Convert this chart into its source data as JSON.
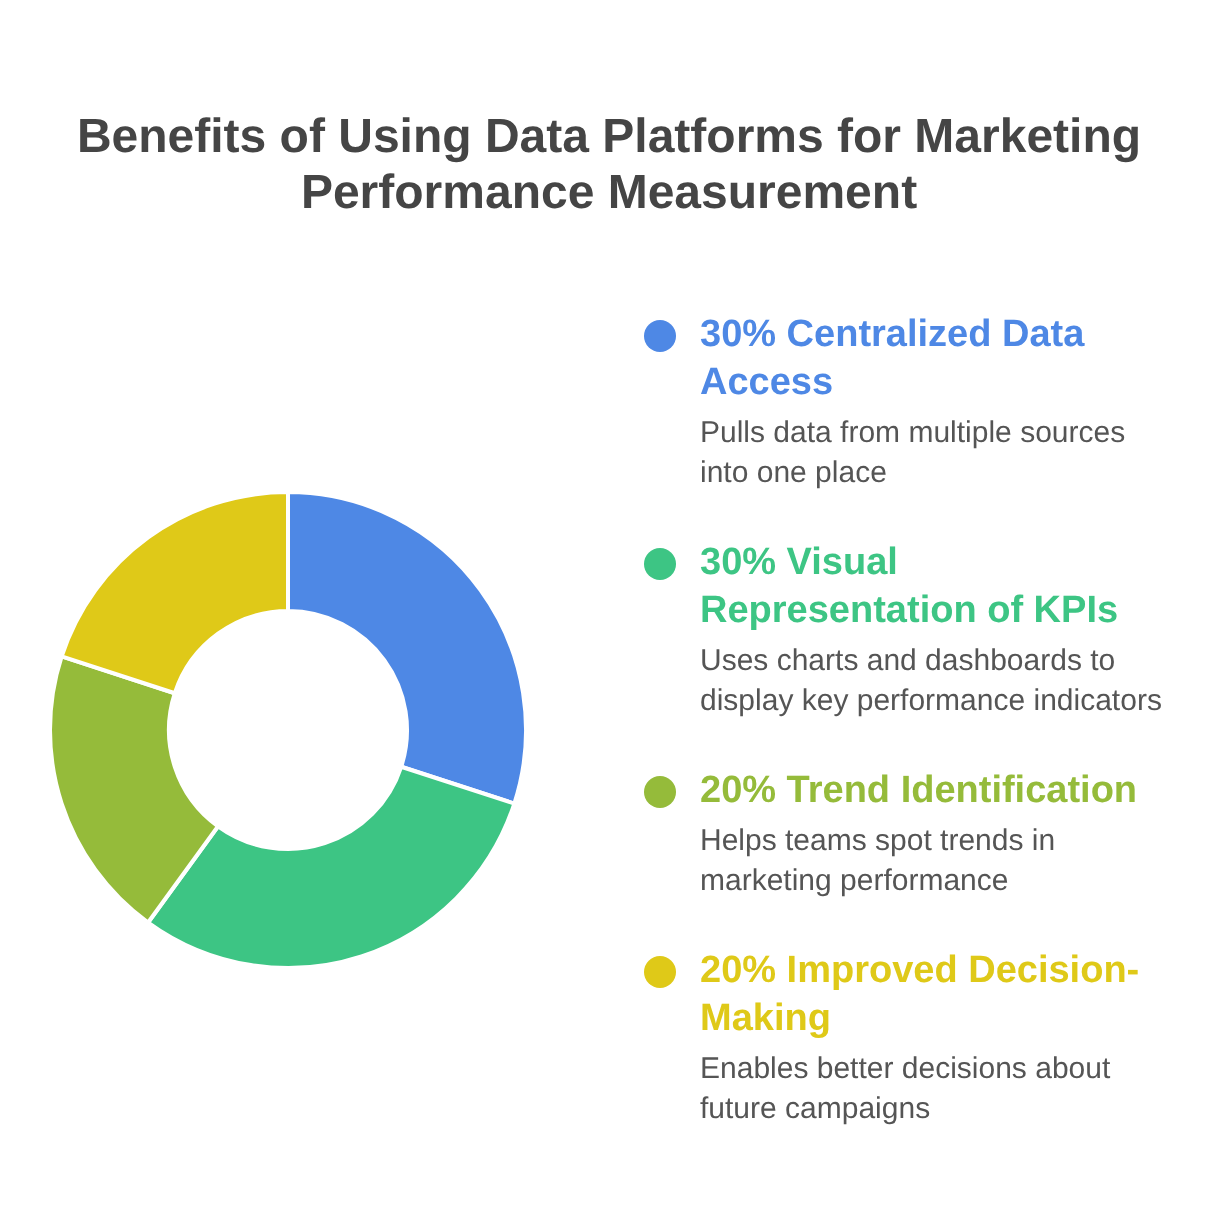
{
  "chart_data": {
    "type": "donut",
    "title": "Benefits of Using Data Platforms for Marketing Performance Measurement",
    "categories": [
      "30% Centralized Data Access",
      "30% Visual Representation of KPIs",
      "20% Trend Identification",
      "20% Improved Decision-Making"
    ],
    "values": [
      30,
      30,
      20,
      20
    ],
    "colors": [
      "#4e88e5",
      "#3dc584",
      "#95bb3a",
      "#dfc918"
    ],
    "legend": "right",
    "annotations": [
      "Pulls data from multiple sources into one place",
      "Uses charts and dashboards to display key performance indicators",
      "Helps teams spot trends in marketing performance",
      "Enables better decisions about future campaigns"
    ]
  }
}
